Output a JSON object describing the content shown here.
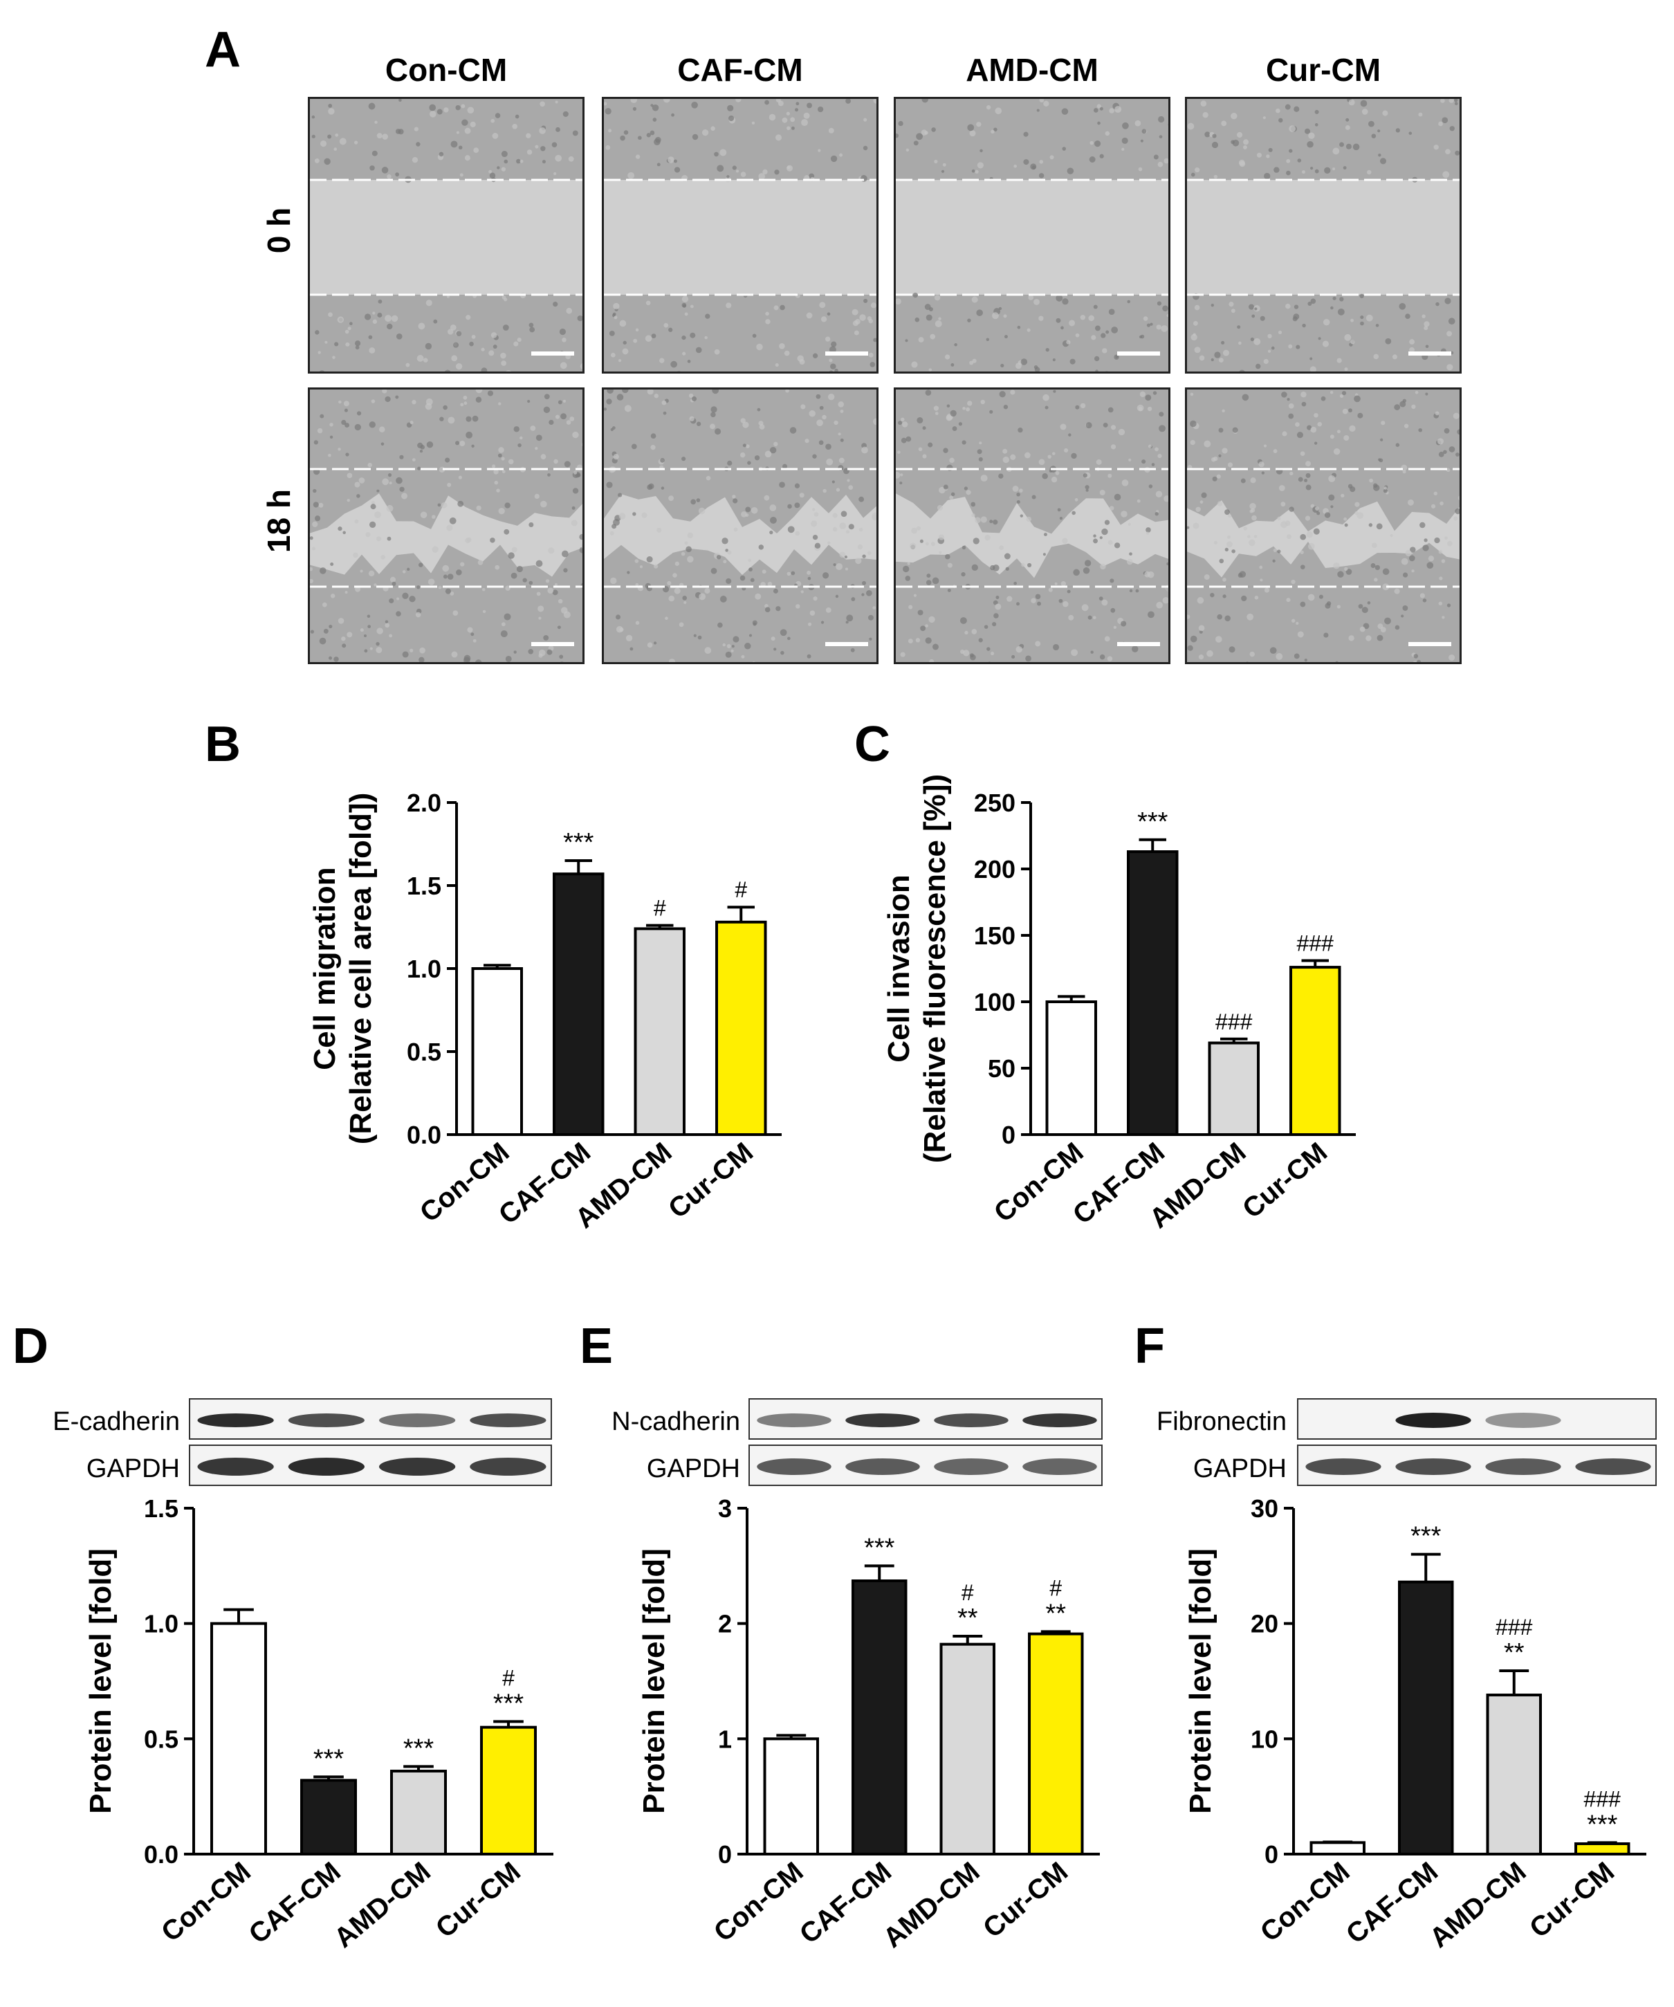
{
  "panels": {
    "a": {
      "letter": "A",
      "columns": [
        "Con-CM",
        "CAF-CM",
        "AMD-CM",
        "Cur-CM"
      ],
      "rows": [
        "0 h",
        "18 h"
      ]
    },
    "b": {
      "letter": "B"
    },
    "c": {
      "letter": "C"
    },
    "d": {
      "letter": "D",
      "blot_labels": [
        "E-cadherin",
        "GAPDH"
      ]
    },
    "e": {
      "letter": "E",
      "blot_labels": [
        "N-cadherin",
        "GAPDH"
      ]
    },
    "f": {
      "letter": "F",
      "blot_labels": [
        "Fibronectin",
        "GAPDH"
      ]
    }
  },
  "colors": {
    "Con-CM": "#ffffff",
    "CAF-CM": "#1a1a1a",
    "AMD-CM": "#d9d9d9",
    "Cur-CM": "#ffef00"
  },
  "chart_data": [
    {
      "id": "B",
      "type": "bar",
      "categories": [
        "Con-CM",
        "CAF-CM",
        "AMD-CM",
        "Cur-CM"
      ],
      "values": [
        1.0,
        1.57,
        1.24,
        1.28
      ],
      "errors": [
        0.02,
        0.08,
        0.02,
        0.09
      ],
      "annotations": [
        [
          ""
        ],
        [
          "***"
        ],
        [
          "#"
        ],
        [
          "#"
        ]
      ],
      "ylabel": [
        "Cell migration",
        "(Relative cell area [fold])"
      ],
      "ylim": [
        0,
        2.0
      ],
      "yticks": [
        "0.0",
        "0.5",
        "1.0",
        "1.5",
        "2.0"
      ],
      "ytick_values": [
        0,
        0.5,
        1.0,
        1.5,
        2.0
      ]
    },
    {
      "id": "C",
      "type": "bar",
      "categories": [
        "Con-CM",
        "CAF-CM",
        "AMD-CM",
        "Cur-CM"
      ],
      "values": [
        100,
        213,
        69,
        126
      ],
      "errors": [
        4,
        9,
        3,
        5
      ],
      "annotations": [
        [
          ""
        ],
        [
          "***"
        ],
        [
          "###"
        ],
        [
          "###"
        ]
      ],
      "ylabel": [
        "Cell invasion",
        "(Relative fluorescence [%])"
      ],
      "ylim": [
        0,
        250
      ],
      "yticks": [
        "0",
        "50",
        "100",
        "150",
        "200",
        "250"
      ],
      "ytick_values": [
        0,
        50,
        100,
        150,
        200,
        250
      ]
    },
    {
      "id": "D",
      "type": "bar",
      "categories": [
        "Con-CM",
        "CAF-CM",
        "AMD-CM",
        "Cur-CM"
      ],
      "values": [
        1.0,
        0.32,
        0.36,
        0.55
      ],
      "errors": [
        0.06,
        0.015,
        0.02,
        0.025
      ],
      "annotations": [
        [
          ""
        ],
        [
          "***"
        ],
        [
          "***"
        ],
        [
          "#",
          "***"
        ]
      ],
      "ylabel": [
        "Protein level [fold]"
      ],
      "ylim": [
        0,
        1.5
      ],
      "yticks": [
        "0.0",
        "0.5",
        "1.0",
        "1.5"
      ],
      "ytick_values": [
        0,
        0.5,
        1.0,
        1.5
      ]
    },
    {
      "id": "E",
      "type": "bar",
      "categories": [
        "Con-CM",
        "CAF-CM",
        "AMD-CM",
        "Cur-CM"
      ],
      "values": [
        1.0,
        2.37,
        1.82,
        1.91
      ],
      "errors": [
        0.03,
        0.13,
        0.07,
        0.02
      ],
      "annotations": [
        [
          ""
        ],
        [
          "***"
        ],
        [
          "#",
          "**"
        ],
        [
          "#",
          "**"
        ]
      ],
      "ylabel": [
        "Protein level [fold]"
      ],
      "ylim": [
        0,
        3
      ],
      "yticks": [
        "0",
        "1",
        "2",
        "3"
      ],
      "ytick_values": [
        0,
        1,
        2,
        3
      ]
    },
    {
      "id": "F",
      "type": "bar",
      "categories": [
        "Con-CM",
        "CAF-CM",
        "AMD-CM",
        "Cur-CM"
      ],
      "values": [
        1.0,
        23.6,
        13.8,
        0.9
      ],
      "errors": [
        0.05,
        2.4,
        2.1,
        0.1
      ],
      "annotations": [
        [
          ""
        ],
        [
          "***"
        ],
        [
          "###",
          "**"
        ],
        [
          "###",
          "***"
        ]
      ],
      "ylabel": [
        "Protein level [fold]"
      ],
      "ylim": [
        0,
        30
      ],
      "yticks": [
        "0",
        "10",
        "20",
        "30"
      ],
      "ytick_values": [
        0,
        10,
        20,
        30
      ]
    }
  ]
}
